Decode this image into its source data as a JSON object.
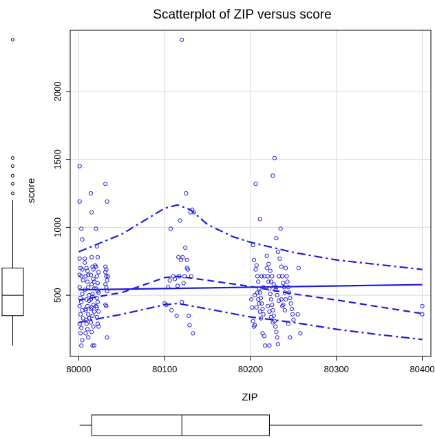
{
  "chart_data": {
    "type": "scatter",
    "title": "Scatterplot of ZIP versus score",
    "xlabel": "ZIP",
    "ylabel": "score",
    "xlim": [
      79990,
      80410
    ],
    "ylim": [
      50,
      2450
    ],
    "x_ticks": [
      80000,
      80100,
      80200,
      80300,
      80400
    ],
    "y_ticks": [
      500,
      1000,
      1500,
      2000
    ],
    "grid": true,
    "points": [
      [
        80001,
        1450
      ],
      [
        80001,
        1190
      ],
      [
        80003,
        990
      ],
      [
        80004,
        910
      ],
      [
        80001,
        770
      ],
      [
        80002,
        700
      ],
      [
        80004,
        690
      ],
      [
        80001,
        650
      ],
      [
        80003,
        640
      ],
      [
        80005,
        610
      ],
      [
        80001,
        560
      ],
      [
        80004,
        510
      ],
      [
        80002,
        480
      ],
      [
        80003,
        450
      ],
      [
        80001,
        420
      ],
      [
        80004,
        390
      ],
      [
        80002,
        360
      ],
      [
        80005,
        330
      ],
      [
        80001,
        290
      ],
      [
        80003,
        260
      ],
      [
        80002,
        220
      ],
      [
        80004,
        170
      ],
      [
        80003,
        130
      ],
      [
        80007,
        770
      ],
      [
        80009,
        700
      ],
      [
        80008,
        640
      ],
      [
        80010,
        600
      ],
      [
        80011,
        560
      ],
      [
        80007,
        540
      ],
      [
        80012,
        500
      ],
      [
        80009,
        470
      ],
      [
        80010,
        420
      ],
      [
        80008,
        390
      ],
      [
        80011,
        360
      ],
      [
        80012,
        330
      ],
      [
        80009,
        290
      ],
      [
        80010,
        250
      ],
      [
        80008,
        220
      ],
      [
        80011,
        190
      ],
      [
        80007,
        740
      ],
      [
        80010,
        680
      ],
      [
        80011,
        650
      ],
      [
        80012,
        460
      ],
      [
        80008,
        400
      ],
      [
        80009,
        320
      ],
      [
        80014,
        1250
      ],
      [
        80015,
        780
      ],
      [
        80016,
        710
      ],
      [
        80014,
        650
      ],
      [
        80017,
        620
      ],
      [
        80015,
        580
      ],
      [
        80018,
        550
      ],
      [
        80016,
        510
      ],
      [
        80014,
        470
      ],
      [
        80017,
        430
      ],
      [
        80015,
        410
      ],
      [
        80018,
        380
      ],
      [
        80016,
        350
      ],
      [
        80014,
        300
      ],
      [
        80017,
        270
      ],
      [
        80015,
        230
      ],
      [
        80016,
        130
      ],
      [
        80018,
        130
      ],
      [
        80015,
        1110
      ],
      [
        80017,
        690
      ],
      [
        80019,
        720
      ],
      [
        80018,
        600
      ],
      [
        80016,
        490
      ],
      [
        80014,
        400
      ],
      [
        80020,
        990
      ],
      [
        80021,
        860
      ],
      [
        80022,
        780
      ],
      [
        80020,
        710
      ],
      [
        80023,
        670
      ],
      [
        80021,
        640
      ],
      [
        80022,
        590
      ],
      [
        80020,
        550
      ],
      [
        80023,
        520
      ],
      [
        80021,
        480
      ],
      [
        80022,
        450
      ],
      [
        80020,
        420
      ],
      [
        80023,
        380
      ],
      [
        80021,
        340
      ],
      [
        80022,
        290
      ],
      [
        80023,
        270
      ],
      [
        80021,
        410
      ],
      [
        80022,
        530
      ],
      [
        80031,
        1320
      ],
      [
        80033,
        1190
      ],
      [
        80031,
        710
      ],
      [
        80032,
        690
      ],
      [
        80031,
        670
      ],
      [
        80032,
        640
      ],
      [
        80033,
        610
      ],
      [
        80031,
        580
      ],
      [
        80032,
        560
      ],
      [
        80033,
        530
      ],
      [
        80031,
        430
      ],
      [
        80032,
        420
      ],
      [
        80033,
        190
      ],
      [
        80034,
        640
      ],
      [
        80100,
        440
      ],
      [
        80102,
        430
      ],
      [
        80104,
        560
      ],
      [
        80106,
        610
      ],
      [
        80107,
        990
      ],
      [
        80108,
        390
      ],
      [
        80110,
        640
      ],
      [
        80112,
        620
      ],
      [
        80114,
        350
      ],
      [
        80115,
        570
      ],
      [
        80116,
        780
      ],
      [
        80117,
        640
      ],
      [
        80118,
        1050
      ],
      [
        80119,
        760
      ],
      [
        80120,
        2380
      ],
      [
        80121,
        780
      ],
      [
        80122,
        590
      ],
      [
        80123,
        640
      ],
      [
        80124,
        850
      ],
      [
        80125,
        1250
      ],
      [
        80126,
        760
      ],
      [
        80127,
        690
      ],
      [
        80128,
        350
      ],
      [
        80129,
        280
      ],
      [
        80130,
        1110
      ],
      [
        80131,
        640
      ],
      [
        80132,
        1130
      ],
      [
        80133,
        220
      ],
      [
        80134,
        1110
      ],
      [
        80126,
        700
      ],
      [
        80120,
        450
      ],
      [
        80201,
        470
      ],
      [
        80202,
        410
      ],
      [
        80203,
        310
      ],
      [
        80204,
        270
      ],
      [
        80205,
        280
      ],
      [
        80206,
        1320
      ],
      [
        80207,
        720
      ],
      [
        80208,
        640
      ],
      [
        80209,
        600
      ],
      [
        80210,
        550
      ],
      [
        80211,
        520
      ],
      [
        80212,
        480
      ],
      [
        80213,
        440
      ],
      [
        80214,
        400
      ],
      [
        80215,
        360
      ],
      [
        80216,
        200
      ],
      [
        80217,
        130
      ],
      [
        80203,
        870
      ],
      [
        80204,
        760
      ],
      [
        80206,
        690
      ],
      [
        80208,
        520
      ],
      [
        80210,
        440
      ],
      [
        80212,
        330
      ],
      [
        80214,
        220
      ],
      [
        80216,
        640
      ],
      [
        80205,
        500
      ],
      [
        80209,
        470
      ],
      [
        80211,
        1060
      ],
      [
        80213,
        640
      ],
      [
        80215,
        560
      ],
      [
        80207,
        410
      ],
      [
        80211,
        380
      ],
      [
        80219,
        700
      ],
      [
        80220,
        640
      ],
      [
        80221,
        600
      ],
      [
        80222,
        550
      ],
      [
        80223,
        510
      ],
      [
        80224,
        470
      ],
      [
        80225,
        430
      ],
      [
        80226,
        390
      ],
      [
        80227,
        350
      ],
      [
        80228,
        310
      ],
      [
        80229,
        270
      ],
      [
        80230,
        230
      ],
      [
        80231,
        190
      ],
      [
        80232,
        140
      ],
      [
        80219,
        790
      ],
      [
        80221,
        730
      ],
      [
        80223,
        680
      ],
      [
        80225,
        640
      ],
      [
        80227,
        580
      ],
      [
        80229,
        540
      ],
      [
        80231,
        500
      ],
      [
        80233,
        460
      ],
      [
        80220,
        420
      ],
      [
        80222,
        380
      ],
      [
        80224,
        340
      ],
      [
        80226,
        1380
      ],
      [
        80228,
        1510
      ],
      [
        80230,
        920
      ],
      [
        80232,
        820
      ],
      [
        80234,
        770
      ],
      [
        80235,
        990
      ],
      [
        80236,
        710
      ],
      [
        80237,
        640
      ],
      [
        80238,
        590
      ],
      [
        80239,
        560
      ],
      [
        80240,
        520
      ],
      [
        80236,
        470
      ],
      [
        80238,
        430
      ],
      [
        80240,
        390
      ],
      [
        80233,
        640
      ],
      [
        80226,
        300
      ],
      [
        80230,
        560
      ],
      [
        80237,
        420
      ],
      [
        80224,
        600
      ],
      [
        80222,
        130
      ],
      [
        80241,
        700
      ],
      [
        80242,
        640
      ],
      [
        80243,
        600
      ],
      [
        80244,
        560
      ],
      [
        80245,
        520
      ],
      [
        80246,
        480
      ],
      [
        80247,
        440
      ],
      [
        80248,
        400
      ],
      [
        80249,
        360
      ],
      [
        80250,
        320
      ],
      [
        80246,
        190
      ],
      [
        80244,
        290
      ],
      [
        80241,
        470
      ],
      [
        80256,
        700
      ],
      [
        80258,
        220
      ],
      [
        80255,
        360
      ],
      [
        80400,
        420
      ],
      [
        80400,
        360
      ]
    ],
    "fit_lines": {
      "smooth": [
        [
          80000,
          465
        ],
        [
          80050,
          520
        ],
        [
          80100,
          630
        ],
        [
          80115,
          640
        ],
        [
          80150,
          610
        ],
        [
          80200,
          565
        ],
        [
          80250,
          510
        ],
        [
          80300,
          465
        ],
        [
          80350,
          415
        ],
        [
          80400,
          365
        ]
      ],
      "linear": [
        [
          80000,
          540
        ],
        [
          80400,
          578
        ]
      ],
      "upper": [
        [
          80000,
          820
        ],
        [
          80050,
          950
        ],
        [
          80100,
          1140
        ],
        [
          80115,
          1165
        ],
        [
          80130,
          1130
        ],
        [
          80150,
          1020
        ],
        [
          80180,
          930
        ],
        [
          80200,
          890
        ],
        [
          80250,
          815
        ],
        [
          80300,
          760
        ],
        [
          80350,
          725
        ],
        [
          80400,
          690
        ]
      ],
      "lower": [
        [
          80000,
          300
        ],
        [
          80050,
          360
        ],
        [
          80100,
          430
        ],
        [
          80115,
          440
        ],
        [
          80150,
          400
        ],
        [
          80200,
          340
        ],
        [
          80250,
          300
        ],
        [
          80300,
          250
        ],
        [
          80350,
          210
        ],
        [
          80400,
          175
        ]
      ]
    },
    "marginal_score_box": {
      "q1": 350,
      "median": 500,
      "q3": 700,
      "whisker_low": 130,
      "whisker_high": 1200,
      "outliers": [
        1250,
        1320,
        1380,
        1450,
        1510,
        2380
      ]
    },
    "marginal_zip_box": {
      "q1": 80015,
      "median": 80120,
      "q3": 80222,
      "whisker_low": 80001,
      "whisker_high": 80400
    }
  }
}
